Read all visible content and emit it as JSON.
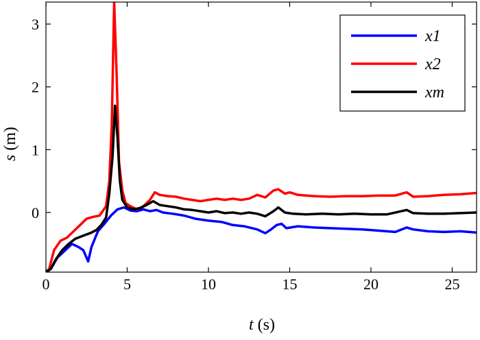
{
  "chart_data": {
    "type": "line",
    "title": "",
    "xlabel": {
      "var": "t",
      "unit": " (s)"
    },
    "ylabel": {
      "var": "s",
      "unit": " (m)"
    },
    "xlim": [
      0,
      26.5
    ],
    "ylim": [
      -0.95,
      3.35
    ],
    "xticks": [
      0,
      5,
      10,
      15,
      20,
      25
    ],
    "xtick_labels": [
      "0",
      "5",
      "10",
      "15",
      "20",
      "25"
    ],
    "yticks": [
      0,
      1,
      2,
      3
    ],
    "ytick_labels": [
      "0",
      "1",
      "2",
      "3"
    ],
    "grid": false,
    "legend_position": "top-right",
    "series": [
      {
        "name": "x1",
        "color": "#0000ff",
        "points": [
          [
            0,
            -0.95
          ],
          [
            0.3,
            -0.9
          ],
          [
            0.7,
            -0.72
          ],
          [
            1.2,
            -0.6
          ],
          [
            1.6,
            -0.5
          ],
          [
            2.0,
            -0.55
          ],
          [
            2.3,
            -0.6
          ],
          [
            2.6,
            -0.78
          ],
          [
            2.8,
            -0.55
          ],
          [
            3.2,
            -0.3
          ],
          [
            3.6,
            -0.18
          ],
          [
            4.0,
            -0.05
          ],
          [
            4.4,
            0.05
          ],
          [
            4.8,
            0.08
          ],
          [
            5.2,
            0.03
          ],
          [
            5.6,
            0.02
          ],
          [
            6.0,
            0.05
          ],
          [
            6.4,
            0.02
          ],
          [
            6.8,
            0.04
          ],
          [
            7.2,
            0.0
          ],
          [
            7.8,
            -0.02
          ],
          [
            8.5,
            -0.05
          ],
          [
            9.2,
            -0.1
          ],
          [
            10.0,
            -0.13
          ],
          [
            10.8,
            -0.15
          ],
          [
            11.5,
            -0.2
          ],
          [
            12.2,
            -0.22
          ],
          [
            13.0,
            -0.27
          ],
          [
            13.5,
            -0.33
          ],
          [
            13.8,
            -0.28
          ],
          [
            14.2,
            -0.2
          ],
          [
            14.5,
            -0.18
          ],
          [
            14.8,
            -0.25
          ],
          [
            15.5,
            -0.22
          ],
          [
            16.5,
            -0.24
          ],
          [
            17.5,
            -0.25
          ],
          [
            18.5,
            -0.26
          ],
          [
            19.5,
            -0.27
          ],
          [
            20.5,
            -0.29
          ],
          [
            21.5,
            -0.31
          ],
          [
            22.2,
            -0.24
          ],
          [
            22.6,
            -0.27
          ],
          [
            23.5,
            -0.3
          ],
          [
            24.5,
            -0.31
          ],
          [
            25.5,
            -0.3
          ],
          [
            26.5,
            -0.32
          ]
        ]
      },
      {
        "name": "x2",
        "color": "#ff0000",
        "points": [
          [
            0,
            -0.95
          ],
          [
            0.2,
            -0.9
          ],
          [
            0.5,
            -0.6
          ],
          [
            0.9,
            -0.45
          ],
          [
            1.3,
            -0.4
          ],
          [
            1.7,
            -0.3
          ],
          [
            2.1,
            -0.2
          ],
          [
            2.5,
            -0.1
          ],
          [
            2.9,
            -0.07
          ],
          [
            3.3,
            -0.05
          ],
          [
            3.7,
            0.1
          ],
          [
            3.9,
            0.5
          ],
          [
            4.05,
            1.4
          ],
          [
            4.2,
            3.35
          ],
          [
            4.35,
            2.2
          ],
          [
            4.5,
            0.8
          ],
          [
            4.7,
            0.35
          ],
          [
            4.9,
            0.15
          ],
          [
            5.2,
            0.1
          ],
          [
            5.6,
            0.05
          ],
          [
            6.0,
            0.1
          ],
          [
            6.4,
            0.2
          ],
          [
            6.7,
            0.32
          ],
          [
            7.0,
            0.28
          ],
          [
            7.5,
            0.26
          ],
          [
            8.0,
            0.25
          ],
          [
            8.5,
            0.22
          ],
          [
            9.0,
            0.2
          ],
          [
            9.5,
            0.18
          ],
          [
            10.0,
            0.2
          ],
          [
            10.5,
            0.22
          ],
          [
            11.0,
            0.2
          ],
          [
            11.5,
            0.22
          ],
          [
            12.0,
            0.2
          ],
          [
            12.5,
            0.22
          ],
          [
            13.0,
            0.28
          ],
          [
            13.5,
            0.24
          ],
          [
            14.0,
            0.35
          ],
          [
            14.3,
            0.37
          ],
          [
            14.7,
            0.3
          ],
          [
            15.0,
            0.32
          ],
          [
            15.5,
            0.28
          ],
          [
            16.5,
            0.26
          ],
          [
            17.5,
            0.25
          ],
          [
            18.5,
            0.26
          ],
          [
            19.5,
            0.26
          ],
          [
            20.5,
            0.27
          ],
          [
            21.5,
            0.27
          ],
          [
            22.2,
            0.32
          ],
          [
            22.6,
            0.25
          ],
          [
            23.5,
            0.26
          ],
          [
            24.5,
            0.28
          ],
          [
            25.5,
            0.29
          ],
          [
            26.5,
            0.31
          ]
        ]
      },
      {
        "name": "xm",
        "color": "#000000",
        "points": [
          [
            0,
            -0.95
          ],
          [
            0.3,
            -0.9
          ],
          [
            0.6,
            -0.75
          ],
          [
            1.0,
            -0.6
          ],
          [
            1.4,
            -0.5
          ],
          [
            1.8,
            -0.42
          ],
          [
            2.2,
            -0.38
          ],
          [
            2.5,
            -0.35
          ],
          [
            2.8,
            -0.32
          ],
          [
            3.1,
            -0.28
          ],
          [
            3.4,
            -0.2
          ],
          [
            3.7,
            -0.08
          ],
          [
            3.9,
            0.3
          ],
          [
            4.1,
            0.9
          ],
          [
            4.25,
            1.7
          ],
          [
            4.4,
            1.2
          ],
          [
            4.55,
            0.5
          ],
          [
            4.7,
            0.2
          ],
          [
            5.0,
            0.08
          ],
          [
            5.4,
            0.05
          ],
          [
            5.8,
            0.07
          ],
          [
            6.2,
            0.12
          ],
          [
            6.6,
            0.18
          ],
          [
            7.0,
            0.12
          ],
          [
            7.5,
            0.1
          ],
          [
            8.0,
            0.08
          ],
          [
            8.5,
            0.05
          ],
          [
            9.0,
            0.04
          ],
          [
            9.5,
            0.02
          ],
          [
            10.0,
            0.0
          ],
          [
            10.5,
            0.02
          ],
          [
            11.0,
            -0.01
          ],
          [
            11.5,
            0.0
          ],
          [
            12.0,
            -0.02
          ],
          [
            12.5,
            0.0
          ],
          [
            13.0,
            -0.02
          ],
          [
            13.5,
            -0.06
          ],
          [
            14.0,
            0.02
          ],
          [
            14.3,
            0.08
          ],
          [
            14.7,
            0.0
          ],
          [
            15.2,
            -0.02
          ],
          [
            16.0,
            -0.03
          ],
          [
            17.0,
            -0.02
          ],
          [
            18.0,
            -0.03
          ],
          [
            19.0,
            -0.02
          ],
          [
            20.0,
            -0.03
          ],
          [
            21.0,
            -0.03
          ],
          [
            22.2,
            0.04
          ],
          [
            22.6,
            -0.01
          ],
          [
            23.5,
            -0.02
          ],
          [
            24.5,
            -0.02
          ],
          [
            25.5,
            -0.01
          ],
          [
            26.5,
            0.0
          ]
        ]
      }
    ]
  }
}
